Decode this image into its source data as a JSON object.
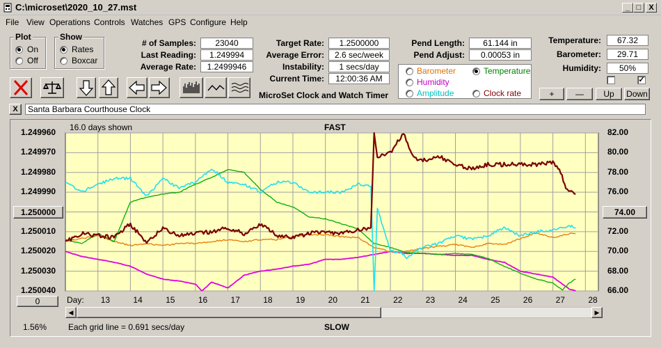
{
  "window": {
    "title": "C:\\microset\\2020_10_27.mst",
    "min": "_",
    "max": "□",
    "close": "X"
  },
  "menu": [
    "File",
    "View",
    "Operations",
    "Controls",
    "Watches",
    "GPS",
    "Configure",
    "Help"
  ],
  "plot_group": {
    "title": "Plot",
    "options": [
      "On",
      "Off"
    ],
    "selected": 0
  },
  "show_group": {
    "title": "Show",
    "options": [
      "Rates",
      "Boxcar"
    ],
    "selected": 0
  },
  "stats": {
    "samples_label": "# of Samples:",
    "samples": "23040",
    "last_label": "Last Reading:",
    "last": "1.249994",
    "avg_label": "Average Rate:",
    "avg": "1.2499946"
  },
  "rates": {
    "target_label": "Target Rate:",
    "target": "1.2500000",
    "avgerr_label": "Average Error:",
    "avgerr": "2.6 sec/week",
    "instab_label": "Instability:",
    "instab": "1 secs/day",
    "time_label": "Current Time:",
    "time": "12:00:36 AM"
  },
  "app_caption": "MicroSet Clock and Watch Timer",
  "pend": {
    "length_label": "Pend Length:",
    "length": "61.144 in",
    "adjust_label": "Pend Adjust:",
    "adjust": "0.00053 in"
  },
  "series_select": {
    "options": [
      {
        "label": "Barometer",
        "color": "#e07000"
      },
      {
        "label": "Temperature",
        "color": "#008000"
      },
      {
        "label": "Humidity",
        "color": "#c000c0"
      },
      {
        "label": "Clock rate",
        "color": "#800000"
      },
      {
        "label": "Amplitude",
        "color": "#00c0c0"
      }
    ],
    "selected": "Temperature"
  },
  "env": {
    "temp_label": "Temperature:",
    "temp": "67.32",
    "baro_label": "Barometer:",
    "baro": "29.71",
    "hum_label": "Humidity:",
    "hum": "50%",
    "checkbox1": false,
    "checkbox2": true
  },
  "scale_buttons": {
    "plus": "+",
    "minus": "—",
    "up": "Up",
    "down": "Down"
  },
  "watch_name": "Santa Barbara Courthouse Clock",
  "close_x": "X",
  "chart_header": {
    "days_shown": "16.0 days shown",
    "fast": "FAST",
    "slow": "SLOW"
  },
  "chart_footer": {
    "grid_note": "Each grid line = 0.691 secs/day",
    "percent": "1.56%",
    "day_label": "Day:"
  },
  "left_axis_button": "1.250000",
  "right_axis_button": "74.00",
  "bottom_left_button": "0",
  "colors": {
    "plot_bg": "#ffffc0",
    "barometer": "#e88010",
    "temperature": "#10b010",
    "humidity": "#e000e0",
    "clock_rate": "#7a0000",
    "amplitude": "#20e0f0"
  },
  "chart_data": {
    "type": "line",
    "x_ticks": [
      13,
      14,
      15,
      16,
      17,
      18,
      19,
      20,
      21,
      22,
      23,
      24,
      25,
      26,
      27,
      28
    ],
    "xlim": [
      12.0,
      28.4
    ],
    "left_axis": {
      "ticks": [
        "1.249960",
        "1.249970",
        "1.249980",
        "1.249990",
        "1.250000",
        "1.250010",
        "1.250020",
        "1.250030",
        "1.250040"
      ],
      "ylim": [
        1.24996,
        1.25004
      ],
      "inverted": true
    },
    "right_axis": {
      "ticks": [
        "82.00",
        "80.00",
        "78.00",
        "76.00",
        "74.00",
        "72.00",
        "70.00",
        "68.00",
        "66.00"
      ],
      "ylim": [
        66,
        82
      ]
    },
    "grid": true,
    "series": [
      {
        "name": "Clock rate",
        "axis": "left",
        "x": [
          12.0,
          12.5,
          13.0,
          13.5,
          14.0,
          14.5,
          15.0,
          15.5,
          16.0,
          16.5,
          17.0,
          17.5,
          18.0,
          18.5,
          19.0,
          19.5,
          20.0,
          20.5,
          21.0,
          21.4,
          21.5,
          21.6,
          22.0,
          22.4,
          22.7,
          23.0,
          23.5,
          24.0,
          24.5,
          25.0,
          25.5,
          26.0,
          26.5,
          27.0,
          27.2,
          27.4,
          27.7
        ],
        "y": [
          1.250015,
          1.250011,
          1.250012,
          1.250013,
          1.250006,
          1.250016,
          1.250008,
          1.250012,
          1.250011,
          1.25001,
          1.250008,
          1.250011,
          1.250006,
          1.250012,
          1.250013,
          1.250011,
          1.25001,
          1.250011,
          1.250009,
          1.250008,
          1.24996,
          1.249972,
          1.24997,
          1.24996,
          1.249972,
          1.249974,
          1.249972,
          1.249976,
          1.249978,
          1.249976,
          1.249976,
          1.249976,
          1.249976,
          1.249975,
          1.249978,
          1.249988,
          1.249991
        ]
      },
      {
        "name": "Amplitude",
        "axis": "left",
        "x": [
          12.0,
          12.5,
          13.0,
          13.5,
          14.0,
          14.5,
          15.0,
          15.5,
          16.0,
          16.5,
          17.0,
          17.5,
          18.0,
          18.5,
          19.0,
          19.5,
          20.0,
          20.5,
          21.0,
          21.4,
          21.5,
          21.6,
          22.0,
          22.3,
          22.5,
          23.0,
          23.5,
          24.0,
          24.5,
          25.0,
          25.5,
          26.0,
          26.5,
          27.0,
          27.5,
          27.7
        ],
        "y": [
          1.249985,
          1.24999,
          1.249986,
          1.249983,
          1.249983,
          1.249992,
          1.249983,
          1.249988,
          1.249985,
          1.249978,
          1.249985,
          1.249986,
          1.24999,
          1.249985,
          1.249985,
          1.24999,
          1.24999,
          1.24999,
          1.249986,
          1.249987,
          1.25004,
          1.249998,
          1.25002,
          1.25002,
          1.250023,
          1.250018,
          1.250016,
          1.250012,
          1.250014,
          1.250012,
          1.250008,
          1.250012,
          1.25001,
          1.250009,
          1.250007,
          1.250008
        ]
      },
      {
        "name": "Barometer",
        "axis": "right",
        "x": [
          12.0,
          12.5,
          13.0,
          13.5,
          14.0,
          14.5,
          15.0,
          15.5,
          16.0,
          16.5,
          17.0,
          17.5,
          18.0,
          18.5,
          19.0,
          19.5,
          20.0,
          20.5,
          21.0,
          21.5,
          22.0,
          22.5,
          23.0,
          23.5,
          24.0,
          24.5,
          25.0,
          25.5,
          26.0,
          26.5,
          27.0,
          27.5,
          27.7
        ],
        "y": [
          71.0,
          71.3,
          71.6,
          71.0,
          70.6,
          70.8,
          70.6,
          70.8,
          70.8,
          71.0,
          71.2,
          71.0,
          71.2,
          71.2,
          71.5,
          71.7,
          71.7,
          71.5,
          71.4,
          70.4,
          70.0,
          70.0,
          70.3,
          70.5,
          70.7,
          70.4,
          70.8,
          70.7,
          71.3,
          71.9,
          71.4,
          71.8,
          71.8
        ]
      },
      {
        "name": "Temperature",
        "axis": "right",
        "x": [
          12.0,
          12.5,
          13.0,
          13.5,
          14.0,
          14.5,
          15.0,
          15.5,
          16.0,
          16.5,
          17.0,
          17.5,
          18.0,
          18.5,
          19.0,
          19.5,
          20.0,
          20.5,
          21.0,
          21.5,
          22.0,
          22.5,
          23.0,
          23.5,
          24.0,
          24.5,
          25.0,
          25.5,
          26.0,
          26.5,
          27.0,
          27.3,
          27.5,
          27.7
        ],
        "y": [
          71.2,
          70.8,
          71.8,
          71.0,
          75.0,
          75.5,
          75.8,
          76.0,
          76.8,
          77.5,
          78.3,
          78.0,
          76.3,
          75.0,
          74.5,
          73.5,
          73.3,
          72.8,
          72.3,
          70.8,
          70.4,
          69.9,
          69.8,
          69.7,
          69.8,
          69.7,
          69.3,
          68.5,
          67.8,
          67.2,
          66.8,
          66.1,
          66.8,
          67.2
        ]
      },
      {
        "name": "Humidity",
        "axis": "right",
        "x": [
          12.0,
          12.5,
          13.0,
          13.5,
          14.0,
          14.5,
          15.0,
          15.5,
          16.0,
          16.2,
          16.5,
          17.0,
          17.5,
          18.0,
          18.5,
          19.0,
          19.5,
          20.0,
          20.5,
          21.0,
          21.5,
          22.0,
          22.5,
          23.0,
          23.5,
          24.0,
          24.5,
          25.0,
          25.5,
          26.0,
          26.5,
          27.0,
          27.5,
          27.7
        ],
        "y": [
          70.0,
          69.5,
          69.2,
          68.9,
          68.5,
          67.7,
          67.2,
          67.0,
          66.7,
          66.0,
          66.9,
          66.3,
          67.6,
          68.0,
          68.2,
          68.5,
          68.7,
          69.2,
          69.2,
          69.4,
          69.7,
          70.0,
          69.8,
          69.8,
          69.7,
          69.6,
          69.6,
          69.2,
          68.9,
          68.0,
          67.7,
          67.4,
          66.2,
          66.0
        ]
      }
    ]
  }
}
